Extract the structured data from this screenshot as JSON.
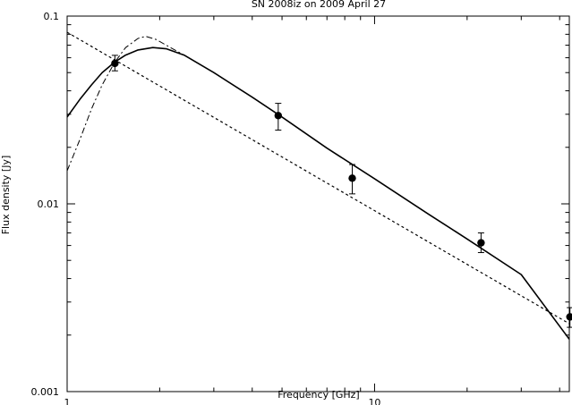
{
  "chart_data": {
    "type": "scatter",
    "title": "SN 2008iz on 2009 April 27",
    "xlabel": "Frequency [GHz]",
    "ylabel": "Flux density [Jy]",
    "xscale": "log",
    "yscale": "log",
    "xlim": [
      1,
      43
    ],
    "ylim": [
      0.001,
      0.1
    ],
    "x_ticks": [
      {
        "value": 1,
        "label": "1"
      },
      {
        "value": 10,
        "label": "10"
      }
    ],
    "y_ticks": [
      {
        "value": 0.1,
        "label": "0.1"
      },
      {
        "value": 0.01,
        "label": "0.01"
      },
      {
        "value": 0.001,
        "label": "0.001"
      }
    ],
    "grid": false,
    "legend": "none",
    "series": [
      {
        "style": "points-with-errorbars",
        "x": [
          1.43,
          4.86,
          8.46,
          22.2,
          43.2
        ],
        "y": [
          0.056,
          0.0295,
          0.0137,
          0.0062,
          0.0025
        ],
        "y_err_low": [
          0.0049,
          0.0048,
          0.0024,
          0.0007,
          0.0003
        ],
        "y_err_high": [
          0.0058,
          0.0048,
          0.0025,
          0.0008,
          0.0003
        ]
      },
      {
        "style": "solid-line",
        "x": [
          1.0,
          1.1,
          1.2,
          1.3,
          1.43,
          1.55,
          1.7,
          1.9,
          2.1,
          2.4,
          3.0,
          4.0,
          5.0,
          7.0,
          10.0,
          15.0,
          20.0,
          30.0,
          43.0
        ],
        "y": [
          0.029,
          0.036,
          0.043,
          0.05,
          0.057,
          0.062,
          0.066,
          0.068,
          0.067,
          0.062,
          0.05,
          0.037,
          0.029,
          0.0198,
          0.0136,
          0.0088,
          0.0065,
          0.0042,
          0.0019
        ]
      },
      {
        "style": "dash-dot-line",
        "x": [
          1.0,
          1.1,
          1.2,
          1.3,
          1.43,
          1.55,
          1.7,
          1.8,
          1.95,
          2.1,
          2.4,
          3.0,
          4.0,
          5.0,
          7.0,
          10.0,
          15.0,
          20.0,
          30.0,
          43.0
        ],
        "y": [
          0.015,
          0.022,
          0.032,
          0.043,
          0.057,
          0.068,
          0.076,
          0.078,
          0.075,
          0.07,
          0.062,
          0.05,
          0.037,
          0.029,
          0.0198,
          0.0136,
          0.0088,
          0.0065,
          0.0042,
          0.0019
        ]
      },
      {
        "style": "dotted-line",
        "x": [
          1.0,
          43.0
        ],
        "y": [
          0.082,
          0.0023
        ]
      }
    ]
  }
}
